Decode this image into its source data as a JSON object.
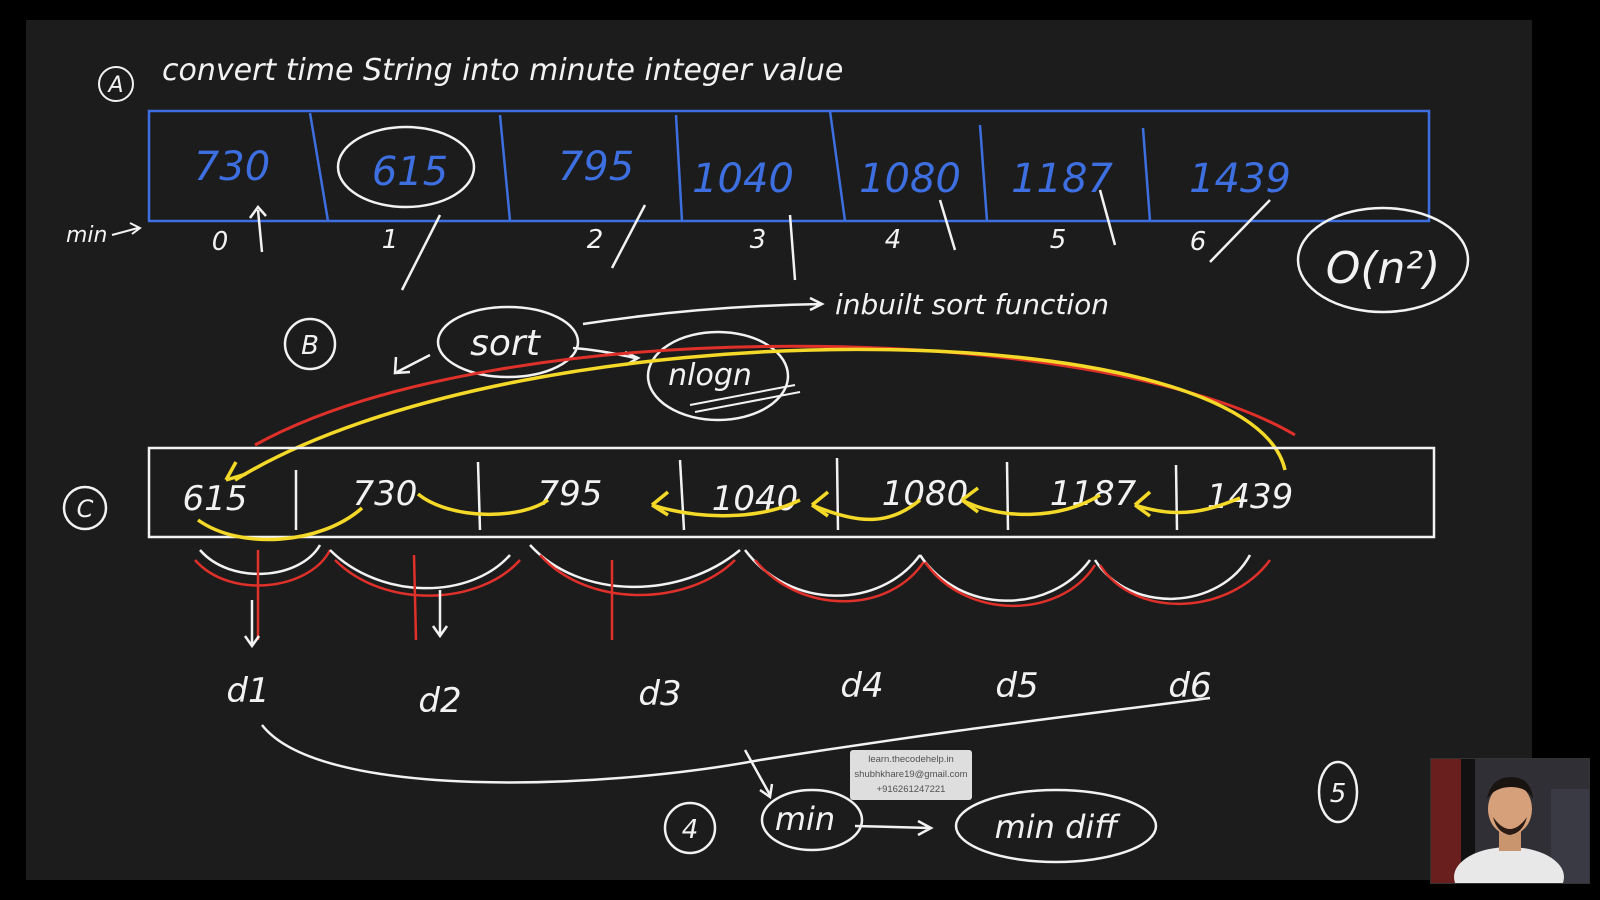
{
  "board": {
    "background": "#1c1c1c",
    "colors": {
      "white": "#f2f2f2",
      "blue": "#3d6fe0",
      "red": "#e0302a",
      "yellow": "#f4d928"
    },
    "step_a": {
      "marker": "A",
      "title": "convert time String into minute integer value",
      "row_label": "min",
      "values": [
        "730",
        "615",
        "795",
        "1040",
        "1080",
        "1187",
        "1439"
      ],
      "indices": [
        "0",
        "1",
        "2",
        "3",
        "4",
        "5",
        "6"
      ],
      "complexity": "O(n²)"
    },
    "step_b": {
      "marker": "B",
      "sort_label": "sort",
      "complexity": "nlogn",
      "note": "inbuilt sort function"
    },
    "step_c": {
      "marker": "C",
      "values": [
        "615",
        "730",
        "795",
        "1040",
        "1080",
        "1187",
        "1439"
      ],
      "diffs": [
        "d1",
        "d2",
        "d3",
        "d4",
        "d5",
        "d6"
      ]
    },
    "step_d": {
      "marker": "4",
      "min_label": "min",
      "result_label": "min diff"
    },
    "step_e": {
      "marker": "5"
    }
  },
  "watermark": {
    "site": "learn.thecodehelp.in",
    "email": "shubhkhare19@gmail.com",
    "phone": "+916261247221"
  },
  "webcam": {
    "icon": "presenter-video-icon"
  }
}
